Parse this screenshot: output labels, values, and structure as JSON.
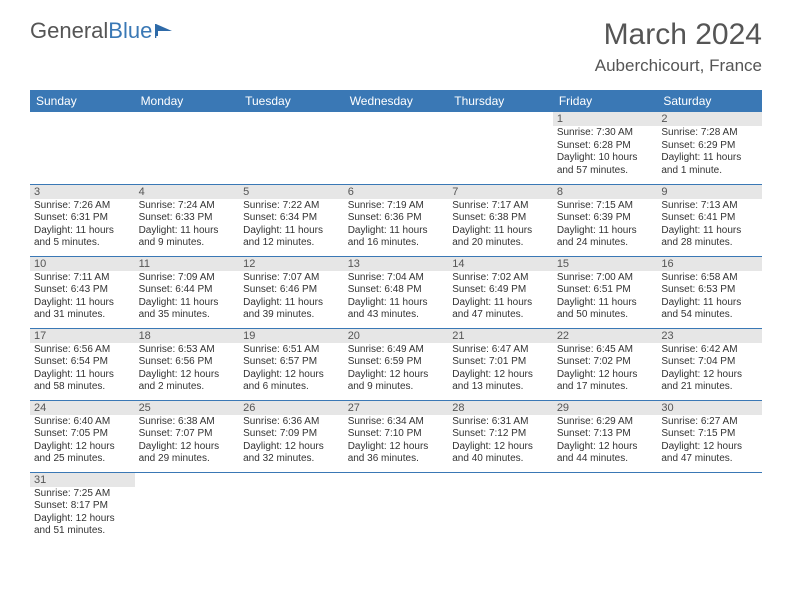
{
  "logo": {
    "word1": "General",
    "word2": "Blue"
  },
  "title": "March 2024",
  "location": "Auberchicourt, France",
  "colors": {
    "header_bg": "#3a78b5",
    "header_text": "#ffffff",
    "daynum_bg": "#e6e6e6",
    "border": "#3a78b5",
    "text": "#333333",
    "title_text": "#555555"
  },
  "weekdays": [
    "Sunday",
    "Monday",
    "Tuesday",
    "Wednesday",
    "Thursday",
    "Friday",
    "Saturday"
  ],
  "weeks": [
    [
      {
        "empty": true
      },
      {
        "empty": true
      },
      {
        "empty": true
      },
      {
        "empty": true
      },
      {
        "empty": true
      },
      {
        "day": "1",
        "sunrise": "Sunrise: 7:30 AM",
        "sunset": "Sunset: 6:28 PM",
        "daylight": "Daylight: 10 hours and 57 minutes."
      },
      {
        "day": "2",
        "sunrise": "Sunrise: 7:28 AM",
        "sunset": "Sunset: 6:29 PM",
        "daylight": "Daylight: 11 hours and 1 minute."
      }
    ],
    [
      {
        "day": "3",
        "sunrise": "Sunrise: 7:26 AM",
        "sunset": "Sunset: 6:31 PM",
        "daylight": "Daylight: 11 hours and 5 minutes."
      },
      {
        "day": "4",
        "sunrise": "Sunrise: 7:24 AM",
        "sunset": "Sunset: 6:33 PM",
        "daylight": "Daylight: 11 hours and 9 minutes."
      },
      {
        "day": "5",
        "sunrise": "Sunrise: 7:22 AM",
        "sunset": "Sunset: 6:34 PM",
        "daylight": "Daylight: 11 hours and 12 minutes."
      },
      {
        "day": "6",
        "sunrise": "Sunrise: 7:19 AM",
        "sunset": "Sunset: 6:36 PM",
        "daylight": "Daylight: 11 hours and 16 minutes."
      },
      {
        "day": "7",
        "sunrise": "Sunrise: 7:17 AM",
        "sunset": "Sunset: 6:38 PM",
        "daylight": "Daylight: 11 hours and 20 minutes."
      },
      {
        "day": "8",
        "sunrise": "Sunrise: 7:15 AM",
        "sunset": "Sunset: 6:39 PM",
        "daylight": "Daylight: 11 hours and 24 minutes."
      },
      {
        "day": "9",
        "sunrise": "Sunrise: 7:13 AM",
        "sunset": "Sunset: 6:41 PM",
        "daylight": "Daylight: 11 hours and 28 minutes."
      }
    ],
    [
      {
        "day": "10",
        "sunrise": "Sunrise: 7:11 AM",
        "sunset": "Sunset: 6:43 PM",
        "daylight": "Daylight: 11 hours and 31 minutes."
      },
      {
        "day": "11",
        "sunrise": "Sunrise: 7:09 AM",
        "sunset": "Sunset: 6:44 PM",
        "daylight": "Daylight: 11 hours and 35 minutes."
      },
      {
        "day": "12",
        "sunrise": "Sunrise: 7:07 AM",
        "sunset": "Sunset: 6:46 PM",
        "daylight": "Daylight: 11 hours and 39 minutes."
      },
      {
        "day": "13",
        "sunrise": "Sunrise: 7:04 AM",
        "sunset": "Sunset: 6:48 PM",
        "daylight": "Daylight: 11 hours and 43 minutes."
      },
      {
        "day": "14",
        "sunrise": "Sunrise: 7:02 AM",
        "sunset": "Sunset: 6:49 PM",
        "daylight": "Daylight: 11 hours and 47 minutes."
      },
      {
        "day": "15",
        "sunrise": "Sunrise: 7:00 AM",
        "sunset": "Sunset: 6:51 PM",
        "daylight": "Daylight: 11 hours and 50 minutes."
      },
      {
        "day": "16",
        "sunrise": "Sunrise: 6:58 AM",
        "sunset": "Sunset: 6:53 PM",
        "daylight": "Daylight: 11 hours and 54 minutes."
      }
    ],
    [
      {
        "day": "17",
        "sunrise": "Sunrise: 6:56 AM",
        "sunset": "Sunset: 6:54 PM",
        "daylight": "Daylight: 11 hours and 58 minutes."
      },
      {
        "day": "18",
        "sunrise": "Sunrise: 6:53 AM",
        "sunset": "Sunset: 6:56 PM",
        "daylight": "Daylight: 12 hours and 2 minutes."
      },
      {
        "day": "19",
        "sunrise": "Sunrise: 6:51 AM",
        "sunset": "Sunset: 6:57 PM",
        "daylight": "Daylight: 12 hours and 6 minutes."
      },
      {
        "day": "20",
        "sunrise": "Sunrise: 6:49 AM",
        "sunset": "Sunset: 6:59 PM",
        "daylight": "Daylight: 12 hours and 9 minutes."
      },
      {
        "day": "21",
        "sunrise": "Sunrise: 6:47 AM",
        "sunset": "Sunset: 7:01 PM",
        "daylight": "Daylight: 12 hours and 13 minutes."
      },
      {
        "day": "22",
        "sunrise": "Sunrise: 6:45 AM",
        "sunset": "Sunset: 7:02 PM",
        "daylight": "Daylight: 12 hours and 17 minutes."
      },
      {
        "day": "23",
        "sunrise": "Sunrise: 6:42 AM",
        "sunset": "Sunset: 7:04 PM",
        "daylight": "Daylight: 12 hours and 21 minutes."
      }
    ],
    [
      {
        "day": "24",
        "sunrise": "Sunrise: 6:40 AM",
        "sunset": "Sunset: 7:05 PM",
        "daylight": "Daylight: 12 hours and 25 minutes."
      },
      {
        "day": "25",
        "sunrise": "Sunrise: 6:38 AM",
        "sunset": "Sunset: 7:07 PM",
        "daylight": "Daylight: 12 hours and 29 minutes."
      },
      {
        "day": "26",
        "sunrise": "Sunrise: 6:36 AM",
        "sunset": "Sunset: 7:09 PM",
        "daylight": "Daylight: 12 hours and 32 minutes."
      },
      {
        "day": "27",
        "sunrise": "Sunrise: 6:34 AM",
        "sunset": "Sunset: 7:10 PM",
        "daylight": "Daylight: 12 hours and 36 minutes."
      },
      {
        "day": "28",
        "sunrise": "Sunrise: 6:31 AM",
        "sunset": "Sunset: 7:12 PM",
        "daylight": "Daylight: 12 hours and 40 minutes."
      },
      {
        "day": "29",
        "sunrise": "Sunrise: 6:29 AM",
        "sunset": "Sunset: 7:13 PM",
        "daylight": "Daylight: 12 hours and 44 minutes."
      },
      {
        "day": "30",
        "sunrise": "Sunrise: 6:27 AM",
        "sunset": "Sunset: 7:15 PM",
        "daylight": "Daylight: 12 hours and 47 minutes."
      }
    ],
    [
      {
        "day": "31",
        "sunrise": "Sunrise: 7:25 AM",
        "sunset": "Sunset: 8:17 PM",
        "daylight": "Daylight: 12 hours and 51 minutes."
      },
      {
        "empty": true
      },
      {
        "empty": true
      },
      {
        "empty": true
      },
      {
        "empty": true
      },
      {
        "empty": true
      },
      {
        "empty": true
      }
    ]
  ]
}
